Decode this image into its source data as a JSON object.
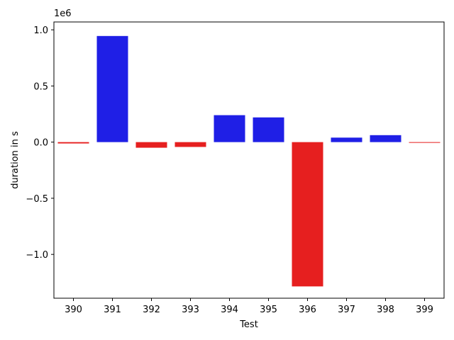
{
  "chart_data": {
    "type": "bar",
    "title": "",
    "xlabel": "Test",
    "ylabel": "duration in s",
    "y_offset_label": "1e6",
    "categories": [
      "390",
      "391",
      "392",
      "393",
      "394",
      "395",
      "396",
      "397",
      "398",
      "399"
    ],
    "values": [
      -12000,
      945000,
      -50000,
      -43000,
      240000,
      220000,
      -1285000,
      40000,
      62000,
      -6000
    ],
    "ylim": [
      -1.39,
      1.07
    ],
    "y_scale": 1000000,
    "y_ticks": [
      -1.0,
      -0.5,
      0.0,
      0.5,
      1.0
    ],
    "y_tick_labels": [
      "−1.0",
      "−0.5",
      "0.0",
      "0.5",
      "1.0"
    ],
    "grid": false,
    "legend": "none",
    "colors": {
      "positive": "#1f1fe6",
      "negative": "#e61f1f",
      "axis": "#000000"
    }
  }
}
